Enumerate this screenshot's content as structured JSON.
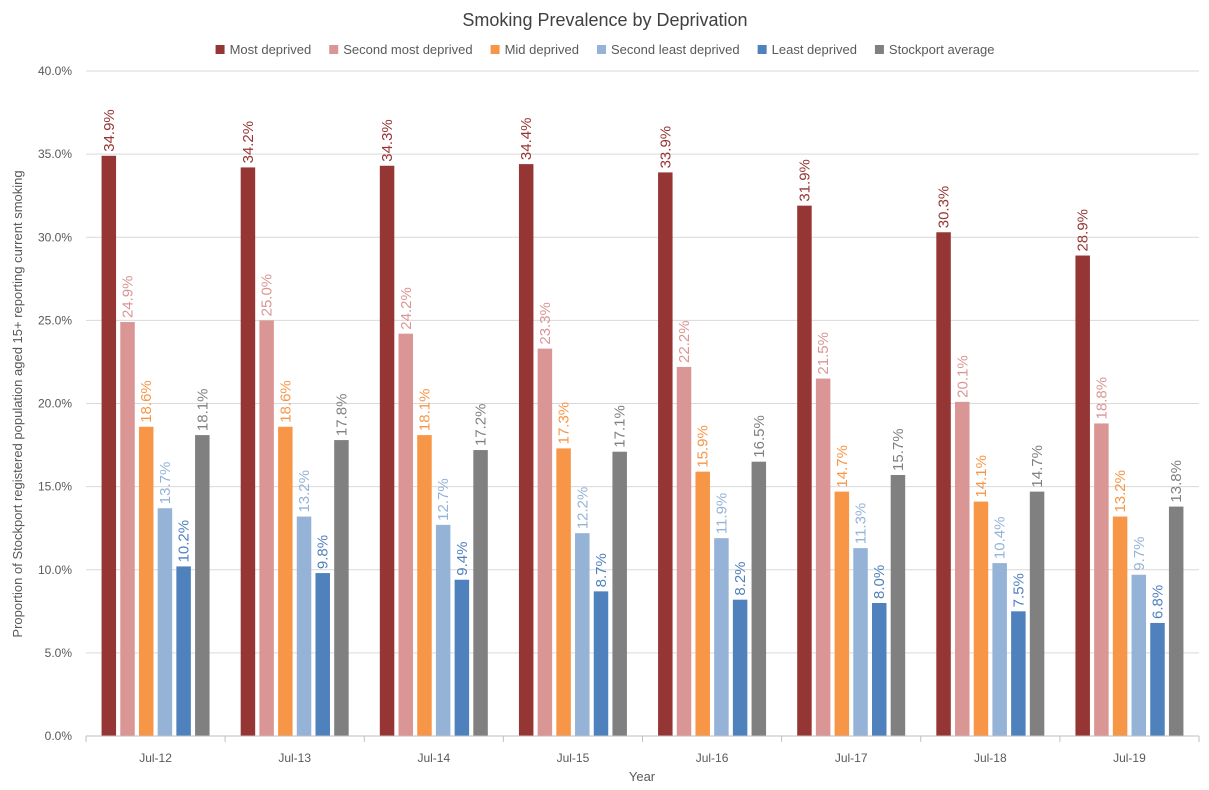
{
  "chart_data": {
    "type": "bar",
    "title": "Smoking Prevalence by Deprivation",
    "xlabel": "Year",
    "ylabel": "Proportion of Stockport registered population aged 15+ reporting current smoking",
    "ylim": [
      0,
      40
    ],
    "yticks": [
      "0.0%",
      "5.0%",
      "10.0%",
      "15.0%",
      "20.0%",
      "25.0%",
      "30.0%",
      "35.0%",
      "40.0%"
    ],
    "grid": true,
    "legend_position": "top",
    "categories": [
      "Jul-12",
      "Jul-13",
      "Jul-14",
      "Jul-15",
      "Jul-16",
      "Jul-17",
      "Jul-18",
      "Jul-19"
    ],
    "series": [
      {
        "name": "Most deprived",
        "color": "#963634",
        "values": [
          34.9,
          34.2,
          34.3,
          34.4,
          33.9,
          31.9,
          30.3,
          28.9
        ],
        "labels": [
          "34.9%",
          "34.2%",
          "34.3%",
          "34.4%",
          "33.9%",
          "31.9%",
          "30.3%",
          "28.9%"
        ]
      },
      {
        "name": "Second most deprived",
        "color": "#DA9694",
        "values": [
          24.9,
          25.0,
          24.2,
          23.3,
          22.2,
          21.5,
          20.1,
          18.8
        ],
        "labels": [
          "24.9%",
          "25.0%",
          "24.2%",
          "23.3%",
          "22.2%",
          "21.5%",
          "20.1%",
          "18.8%"
        ]
      },
      {
        "name": "Mid deprived",
        "color": "#F79646",
        "values": [
          18.6,
          18.6,
          18.1,
          17.3,
          15.9,
          14.7,
          14.1,
          13.2
        ],
        "labels": [
          "18.6%",
          "18.6%",
          "18.1%",
          "17.3%",
          "15.9%",
          "14.7%",
          "14.1%",
          "13.2%"
        ]
      },
      {
        "name": "Second least deprived",
        "color": "#95B3D7",
        "values": [
          13.7,
          13.2,
          12.7,
          12.2,
          11.9,
          11.3,
          10.4,
          9.7
        ],
        "labels": [
          "13.7%",
          "13.2%",
          "12.7%",
          "12.2%",
          "11.9%",
          "11.3%",
          "10.4%",
          "9.7%"
        ]
      },
      {
        "name": "Least deprived",
        "color": "#4F81BD",
        "values": [
          10.2,
          9.8,
          9.4,
          8.7,
          8.2,
          8.0,
          7.5,
          6.8
        ],
        "labels": [
          "10.2%",
          "9.8%",
          "9.4%",
          "8.7%",
          "8.2%",
          "8.0%",
          "7.5%",
          "6.8%"
        ]
      },
      {
        "name": "Stockport average",
        "color": "#808080",
        "values": [
          18.1,
          17.8,
          17.2,
          17.1,
          16.5,
          15.7,
          14.7,
          13.8
        ],
        "labels": [
          "18.1%",
          "17.8%",
          "17.2%",
          "17.1%",
          "16.5%",
          "15.7%",
          "14.7%",
          "13.8%"
        ]
      }
    ]
  }
}
